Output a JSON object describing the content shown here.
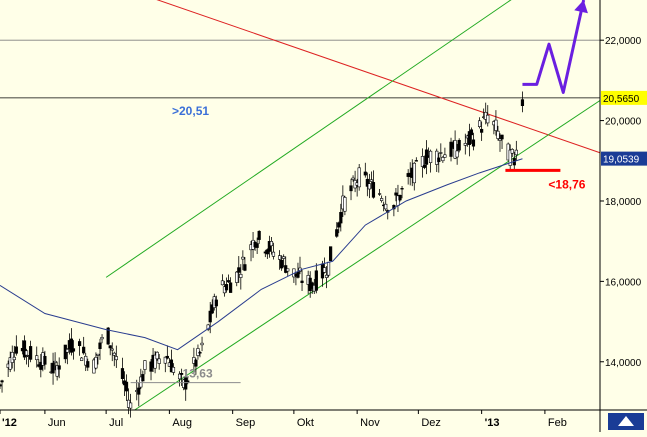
{
  "chart_data": {
    "type": "candlestick",
    "x_axis": {
      "labels": [
        "'12",
        "Jun",
        "Jul",
        "Aug",
        "Sep",
        "Okt",
        "Nov",
        "Dez",
        "'13",
        "Feb"
      ],
      "range": [
        "2012-05-10",
        "2013-02-28"
      ]
    },
    "y_axis": {
      "ticks": [
        "14,0000",
        "16,0000",
        "18,0000",
        "20,0000",
        "22,0000"
      ],
      "ylim": [
        12.8,
        23.0
      ],
      "grid": false
    },
    "horizontal_levels": [
      {
        "value": 22.0,
        "color": "#808080"
      },
      {
        "value": 20.565,
        "color": "#000000"
      }
    ],
    "price_labels": [
      {
        "text": "20,5650",
        "value": 20.565,
        "bg": "#ffff00",
        "fg": "#000000"
      },
      {
        "text": "19,0539",
        "value": 19.0539,
        "bg": "#1a3c96",
        "fg": "#ffffff"
      }
    ],
    "annotations": [
      {
        "text": ">20,51",
        "color": "#3a6fd8"
      },
      {
        "text": "<18,76",
        "color": "#ff0000"
      },
      {
        "text": "13,63",
        "color": "#8c8c8c"
      }
    ],
    "candles_summary": {
      "start_date": "2012-05-10",
      "end_date": "2013-01-21",
      "points": [
        [
          "2012-05-10",
          13.4
        ],
        [
          "2012-05-18",
          14.4
        ],
        [
          "2012-05-28",
          14.1
        ],
        [
          "2012-06-06",
          13.8
        ],
        [
          "2012-06-15",
          14.5
        ],
        [
          "2012-06-25",
          13.9
        ],
        [
          "2012-07-01",
          14.8
        ],
        [
          "2012-07-09",
          13.6
        ],
        [
          "2012-07-13",
          12.9
        ],
        [
          "2012-07-20",
          13.8
        ],
        [
          "2012-07-30",
          14.2
        ],
        [
          "2012-08-08",
          13.4
        ],
        [
          "2012-08-17",
          14.3
        ],
        [
          "2012-08-25",
          15.8
        ],
        [
          "2012-09-01",
          16.0
        ],
        [
          "2012-09-08",
          16.6
        ],
        [
          "2012-09-12",
          17.1
        ],
        [
          "2012-09-20",
          16.8
        ],
        [
          "2012-10-01",
          16.2
        ],
        [
          "2012-10-10",
          15.9
        ],
        [
          "2012-10-18",
          16.4
        ],
        [
          "2012-10-25",
          17.9
        ],
        [
          "2012-11-02",
          18.6
        ],
        [
          "2012-11-12",
          18.2
        ],
        [
          "2012-11-18",
          17.8
        ],
        [
          "2012-11-26",
          18.5
        ],
        [
          "2012-12-05",
          19.1
        ],
        [
          "2012-12-14",
          19.2
        ],
        [
          "2012-12-21",
          19.3
        ],
        [
          "2012-12-28",
          19.6
        ],
        [
          "2013-01-04",
          20.1
        ],
        [
          "2013-01-08",
          19.8
        ],
        [
          "2013-01-12",
          19.3
        ],
        [
          "2013-01-17",
          19.0
        ],
        [
          "2013-01-21",
          20.5
        ]
      ]
    },
    "moving_average": {
      "color": "#2a3d8f",
      "points": [
        [
          "2012-05-10",
          15.9
        ],
        [
          "2012-06-01",
          15.2
        ],
        [
          "2012-07-01",
          14.8
        ],
        [
          "2012-07-20",
          14.6
        ],
        [
          "2012-08-05",
          14.3
        ],
        [
          "2012-08-25",
          15.0
        ],
        [
          "2012-09-15",
          15.8
        ],
        [
          "2012-10-05",
          16.3
        ],
        [
          "2012-10-20",
          16.5
        ],
        [
          "2012-11-05",
          17.4
        ],
        [
          "2012-11-25",
          18.0
        ],
        [
          "2012-12-15",
          18.4
        ],
        [
          "2012-12-31",
          18.7
        ],
        [
          "2013-01-21",
          19.05
        ]
      ]
    },
    "trend_lines": [
      {
        "name": "",
        "color": "#dd2222",
        "from": [
          "2012-07-15",
          23.2
        ],
        "to": [
          "2013-02-28",
          19.2
        ]
      },
      {
        "name": "",
        "color": "#22aa22",
        "from": [
          "2012-07-15",
          12.8
        ],
        "to": [
          "2013-02-28",
          20.5
        ]
      },
      {
        "name": "",
        "color": "#22aa22",
        "from": [
          "2012-07-01",
          16.1
        ],
        "to": [
          "2013-01-21",
          23.2
        ]
      }
    ],
    "resistance_marker": {
      "value": 20.51,
      "color": "#3a6fd8"
    },
    "support_marker": {
      "value": 18.76,
      "color": "#ff0000"
    },
    "low_marker": {
      "value": 13.63,
      "color": "#8c8c8c"
    },
    "projection_arrow": {
      "color": "#6a1fe0",
      "points": [
        [
          "2013-01-21",
          20.9
        ],
        [
          "2013-01-28",
          20.9
        ],
        [
          "2013-02-03",
          21.9
        ],
        [
          "2013-02-10",
          20.7
        ],
        [
          "2013-02-20",
          23.0
        ]
      ]
    },
    "legend": "none"
  }
}
